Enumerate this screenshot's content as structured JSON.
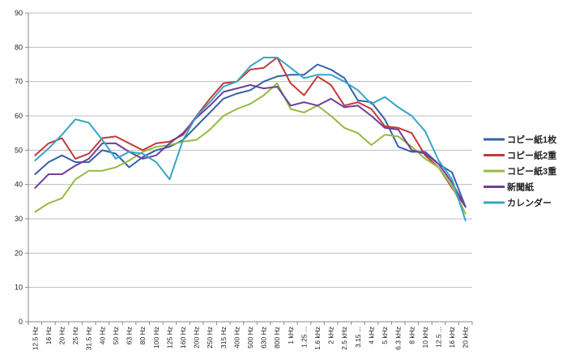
{
  "chart_data": {
    "type": "line",
    "title": "",
    "xlabel": "",
    "ylabel": "",
    "ylim": [
      0,
      90
    ],
    "yticks": [
      0,
      10,
      20,
      30,
      40,
      50,
      60,
      70,
      80,
      90
    ],
    "grid": "horizontal",
    "legend_position": "right",
    "categories": [
      "12.5 Hz",
      "16 Hz",
      "20 Hz",
      "25 Hz",
      "31.5 Hz",
      "40 Hz",
      "50 Hz",
      "63 Hz",
      "80 Hz",
      "100 Hz",
      "125 Hz",
      "160 Hz",
      "200 Hz",
      "250 Hz",
      "315 Hz",
      "400 Hz",
      "500 Hz",
      "630 Hz",
      "800 Hz",
      "1 kHz",
      "1.25 ...",
      "1.6 kHz",
      "2 kHz",
      "2.5 kHz",
      "3.15 ...",
      "4 kHz",
      "5 kHz",
      "6.3 kHz",
      "8 kHz",
      "10 kHz",
      "12.5 ...",
      "16 kHz",
      "20 kHz"
    ],
    "series": [
      {
        "name": "コピー紙1枚",
        "color": "#3561a8",
        "values": [
          43,
          46.5,
          48.5,
          46.5,
          46.5,
          50,
          49,
          45,
          48,
          50,
          51,
          53,
          57,
          61,
          65,
          66.5,
          67.5,
          70,
          71.5,
          72,
          72,
          75,
          73.5,
          71,
          64.5,
          64,
          59,
          51,
          49.5,
          49.5,
          46,
          43.5,
          33.5
        ]
      },
      {
        "name": "コピー紙2重",
        "color": "#c23a3a",
        "values": [
          48.5,
          52,
          53.5,
          47.5,
          49,
          53.5,
          54,
          52,
          50,
          52,
          52.5,
          54.5,
          60,
          65,
          69.5,
          70,
          73.5,
          74,
          77,
          69.5,
          66,
          71.5,
          69,
          63,
          64,
          62,
          57,
          56.5,
          55,
          48.5,
          45,
          39,
          33.5
        ]
      },
      {
        "name": "コピー紙3重",
        "color": "#94bb44",
        "values": [
          32,
          34.5,
          36,
          41.5,
          44,
          44,
          45,
          47,
          49.5,
          51,
          51.5,
          52.5,
          53,
          56,
          60,
          62,
          63.5,
          66,
          69.5,
          62,
          61,
          63,
          60,
          56.5,
          55,
          51.5,
          54.5,
          54,
          51,
          47.5,
          45,
          39.5,
          31.5
        ]
      },
      {
        "name": "新聞紙",
        "color": "#6f3f9a",
        "values": [
          39,
          43,
          43,
          45.5,
          47.5,
          52,
          52,
          49.5,
          47.5,
          48.5,
          52,
          55,
          59.5,
          63,
          67,
          68,
          69,
          68,
          68.5,
          63,
          64,
          63,
          65,
          62.5,
          63,
          60,
          56.5,
          56,
          50,
          49,
          46,
          40.5,
          33.5
        ]
      },
      {
        "name": "カレンダー",
        "color": "#35a6c6",
        "values": [
          47,
          50.5,
          54.5,
          59,
          58,
          53,
          47.5,
          49.5,
          49,
          46.5,
          41.5,
          53,
          60,
          64,
          68.5,
          70,
          74.5,
          77,
          77,
          74,
          71,
          72,
          72,
          70,
          67.5,
          63.5,
          65.5,
          62.5,
          60,
          55.5,
          47,
          41.5,
          29.5
        ]
      }
    ]
  }
}
